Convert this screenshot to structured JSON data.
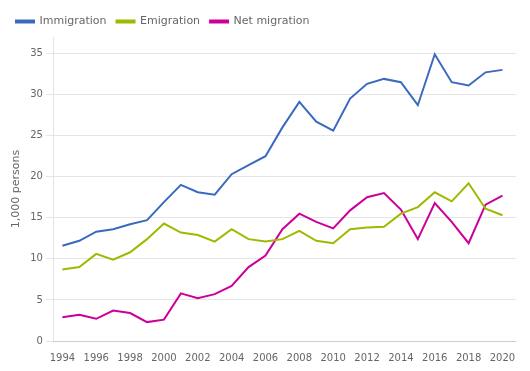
{
  "chart_data": {
    "type": "line",
    "ylabel": "1,000 persons",
    "x": [
      1994,
      1995,
      1996,
      1997,
      1998,
      1999,
      2000,
      2001,
      2002,
      2003,
      2004,
      2005,
      2006,
      2007,
      2008,
      2009,
      2010,
      2011,
      2012,
      2013,
      2014,
      2015,
      2016,
      2017,
      2018,
      2019,
      2020
    ],
    "series": [
      {
        "name": "Immigration",
        "color": "#3a6abf",
        "values": [
          11.6,
          12.2,
          13.3,
          13.6,
          14.2,
          14.7,
          16.9,
          19.0,
          18.1,
          17.8,
          20.3,
          21.4,
          22.5,
          26.0,
          29.1,
          26.7,
          25.6,
          29.5,
          31.3,
          31.9,
          31.5,
          28.7,
          34.9,
          31.5,
          31.1,
          32.7,
          33.0
        ]
      },
      {
        "name": "Emigration",
        "color": "#a0b800",
        "values": [
          8.7,
          9.0,
          10.6,
          9.9,
          10.8,
          12.4,
          14.3,
          13.2,
          12.9,
          12.1,
          13.6,
          12.4,
          12.1,
          12.4,
          13.4,
          12.2,
          11.9,
          13.6,
          13.8,
          13.9,
          15.5,
          16.3,
          18.1,
          17.0,
          19.2,
          16.1,
          15.3
        ]
      },
      {
        "name": "Net migration",
        "color": "#cc0099",
        "values": [
          2.9,
          3.2,
          2.7,
          3.7,
          3.4,
          2.3,
          2.6,
          5.8,
          5.2,
          5.7,
          6.7,
          9.0,
          10.4,
          13.6,
          15.5,
          14.5,
          13.7,
          15.9,
          17.5,
          18.0,
          16.0,
          12.4,
          16.8,
          14.5,
          11.9,
          16.6,
          17.7
        ]
      }
    ],
    "xlim": [
      1993.5,
      2020.8
    ],
    "xticks": [
      1994,
      1996,
      1998,
      2000,
      2002,
      2004,
      2006,
      2008,
      2010,
      2012,
      2014,
      2016,
      2018,
      2020
    ],
    "ylim": [
      0,
      37
    ],
    "yticks": [
      0,
      5,
      10,
      15,
      20,
      25,
      30,
      35
    ],
    "grid": "y",
    "legend": "upper left"
  }
}
